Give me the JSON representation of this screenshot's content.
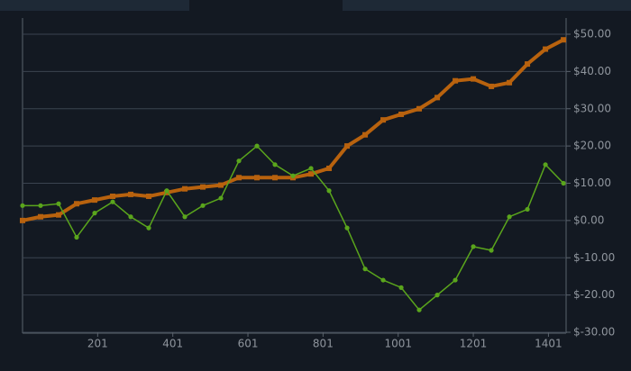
{
  "chart_data": {
    "type": "line",
    "x": [
      1,
      49,
      97,
      145,
      193,
      241,
      289,
      337,
      385,
      433,
      481,
      529,
      577,
      625,
      673,
      721,
      769,
      817,
      865,
      913,
      961,
      1009,
      1057,
      1105,
      1153,
      1201,
      1249,
      1297,
      1345,
      1393,
      1441
    ],
    "series": [
      {
        "color": "#b8620e",
        "values": [
          0,
          1,
          1.5,
          4.5,
          5.5,
          6.5,
          7,
          6.5,
          7.5,
          8.5,
          9,
          9.5,
          11.5,
          11.5,
          11.5,
          11.5,
          12.5,
          14,
          20,
          23,
          27,
          28.5,
          30,
          33,
          37.5,
          38,
          36,
          37,
          42,
          46,
          48.5
        ]
      },
      {
        "color": "#5aa51c",
        "values": [
          4,
          4,
          4.5,
          -4.5,
          2,
          5,
          1,
          -2,
          8,
          1,
          4,
          6,
          16,
          20,
          15,
          12,
          14,
          8,
          -2,
          -13,
          -16,
          -18,
          -24,
          -20,
          -16,
          -7,
          -8,
          1,
          3,
          15,
          10
        ]
      }
    ],
    "xlim": [
      1,
      1448
    ],
    "ylim": [
      -30,
      50
    ],
    "xticks": [
      201,
      401,
      601,
      801,
      1001,
      1201,
      1401
    ],
    "yticks": [
      {
        "value": -30,
        "label": "$-30.00"
      },
      {
        "value": -20,
        "label": "$-20.00"
      },
      {
        "value": -10,
        "label": "$-10.00"
      },
      {
        "value": 0,
        "label": "$0.00"
      },
      {
        "value": 10,
        "label": "$10.00"
      },
      {
        "value": 20,
        "label": "$20.00"
      },
      {
        "value": 30,
        "label": "$30.00"
      },
      {
        "value": 40,
        "label": "$40.00"
      },
      {
        "value": 50,
        "label": "$50.00"
      }
    ],
    "grid": true
  }
}
